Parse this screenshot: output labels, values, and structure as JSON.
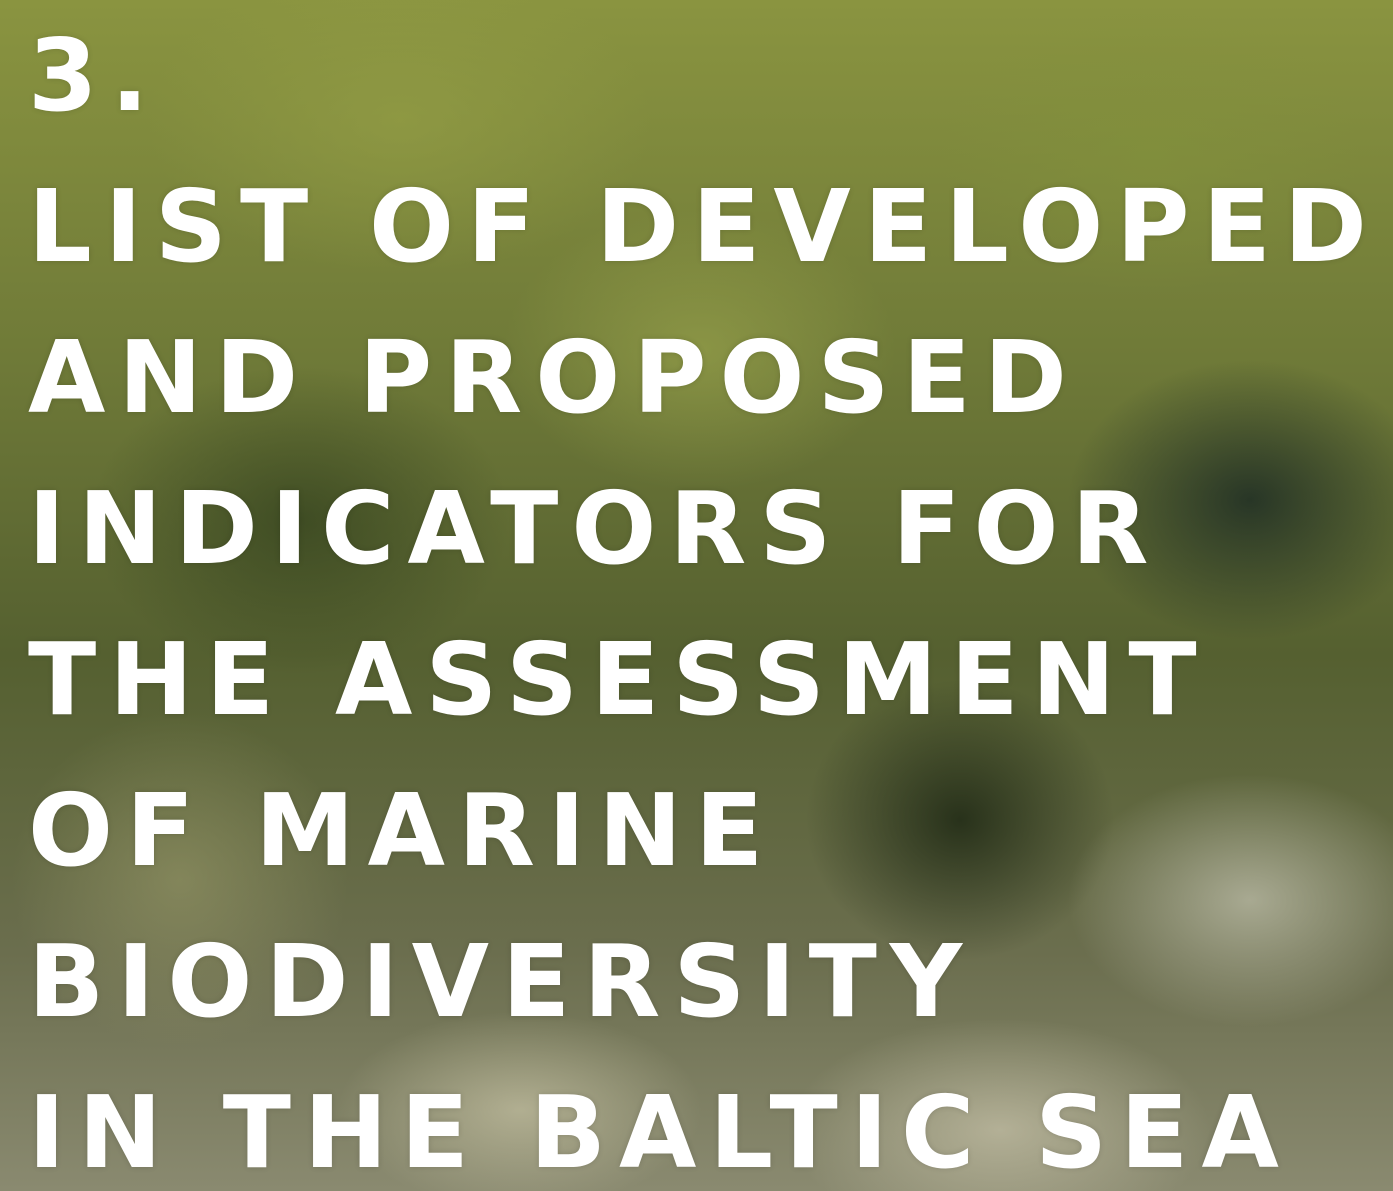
{
  "heading": {
    "number": "3.",
    "lines": [
      "LIST OF DEVELOPED",
      "AND PROPOSED",
      "INDICATORS FOR",
      "THE ASSESSMENT",
      "OF MARINE",
      "BIODIVERSITY",
      "IN THE BALTIC SEA"
    ]
  }
}
